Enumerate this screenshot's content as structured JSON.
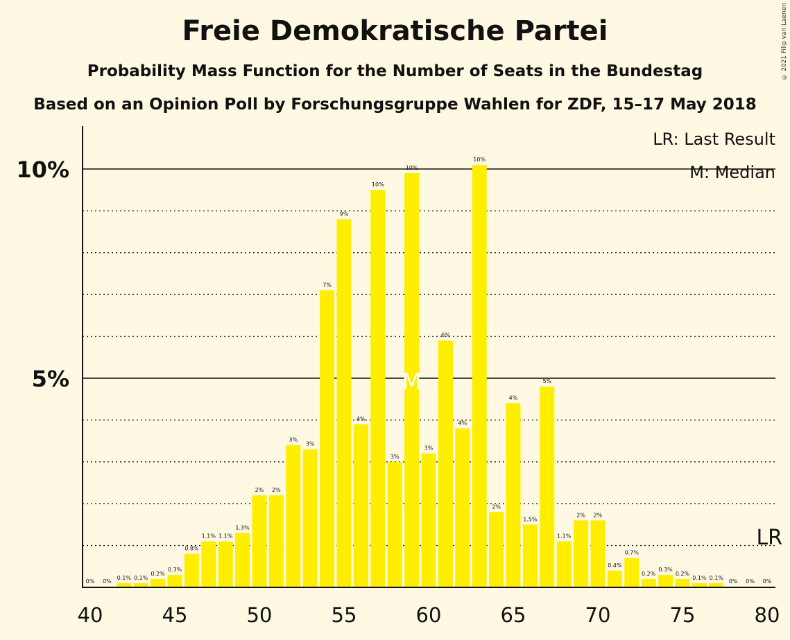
{
  "title": "Freie Demokratische Partei",
  "subtitle": "Probability Mass Function for the Number of Seats in the Bundestag",
  "source": "Based on an Opinion Poll by Forschungsgruppe Wahlen for ZDF, 15–17 May 2018",
  "copyright": "© 2021 Filip van Laenen",
  "legend": {
    "last_result": "LR: Last Result",
    "median": "M: Median"
  },
  "markers": {
    "last_result_label": "LR",
    "last_result_seat": 80,
    "median_label": "M",
    "median_seat": 59
  },
  "colors": {
    "background": "#FFF9E3",
    "bar": "#FFEE00",
    "median_marker": "#FFFFFF",
    "text": "#111111"
  },
  "chart_data": {
    "type": "bar",
    "x": [
      40,
      41,
      42,
      43,
      44,
      45,
      46,
      47,
      48,
      49,
      50,
      51,
      52,
      53,
      54,
      55,
      56,
      57,
      58,
      59,
      60,
      61,
      62,
      63,
      64,
      65,
      66,
      67,
      68,
      69,
      70,
      71,
      72,
      73,
      74,
      75,
      76,
      77,
      78,
      79,
      80
    ],
    "values": [
      0,
      0,
      0.1,
      0.1,
      0.2,
      0.3,
      0.8,
      1.1,
      1.1,
      1.3,
      2.2,
      2.2,
      3.4,
      3.3,
      7.1,
      8.8,
      3.9,
      9.5,
      3.0,
      9.9,
      3.2,
      5.9,
      3.8,
      10.1,
      1.8,
      4.4,
      1.5,
      4.8,
      1.1,
      1.6,
      1.6,
      0.4,
      0.7,
      0.2,
      0.3,
      0.2,
      0.1,
      0.1,
      0,
      0,
      0
    ],
    "labels": [
      "0%",
      "0%",
      "0.1%",
      "0.1%",
      "0.2%",
      "0.3%",
      "0.8%",
      "1.1%",
      "1.1%",
      "1.3%",
      "2%",
      "2%",
      "3%",
      "3%",
      "7%",
      "9%",
      "4%",
      "10%",
      "3%",
      "10%",
      "3%",
      "6%",
      "4%",
      "10%",
      "2%",
      "4%",
      "1.5%",
      "5%",
      "1.1%",
      "2%",
      "2%",
      "0.4%",
      "0.7%",
      "0.2%",
      "0.3%",
      "0.2%",
      "0.1%",
      "0.1%",
      "0%",
      "0%",
      "0%"
    ],
    "x_ticks": [
      "40",
      "45",
      "50",
      "55",
      "60",
      "65",
      "70",
      "75",
      "80"
    ],
    "y_ticks": [
      "5%",
      "10%"
    ],
    "ylim": [
      0,
      11
    ],
    "grid": "dotted every 1%, solid at 5% and 10%"
  }
}
